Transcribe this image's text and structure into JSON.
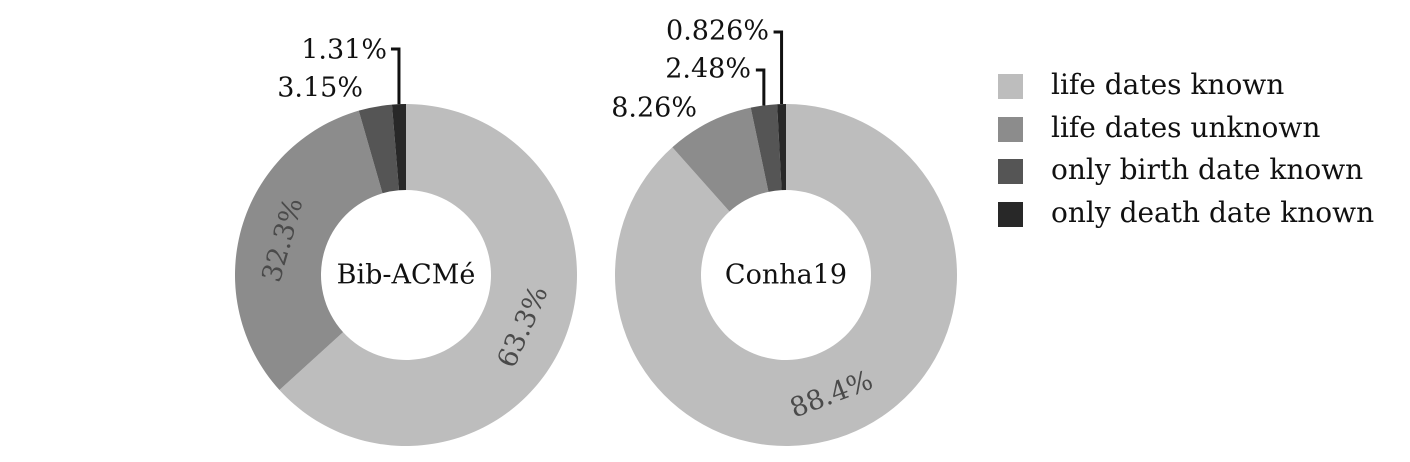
{
  "chart_data": [
    {
      "type": "pie",
      "variant": "donut",
      "center_label": "Bib-ACMé",
      "categories": [
        "life dates known",
        "life dates unknown",
        "only birth date known",
        "only death date known"
      ],
      "values": [
        63.3,
        32.3,
        3.15,
        1.31
      ],
      "value_labels": [
        "63.3%",
        "32.3%",
        "3.15%",
        "1.31%"
      ]
    },
    {
      "type": "pie",
      "variant": "donut",
      "center_label": "Conha19",
      "categories": [
        "life dates known",
        "life dates unknown",
        "only birth date known",
        "only death date known"
      ],
      "values": [
        88.4,
        8.26,
        2.48,
        0.826
      ],
      "value_labels": [
        "88.4%",
        "8.26%",
        "2.48%",
        "0.826%"
      ]
    }
  ],
  "legend": {
    "placement": "right",
    "items": [
      {
        "label": "life dates known",
        "color": "#bdbdbd"
      },
      {
        "label": "life dates unknown",
        "color": "#8c8c8c"
      },
      {
        "label": "only birth date known",
        "color": "#555555"
      },
      {
        "label": "only death date known",
        "color": "#282828"
      }
    ]
  },
  "colors": {
    "slices": [
      "#bdbdbd",
      "#8c8c8c",
      "#555555",
      "#282828"
    ],
    "inner_label": "#4a4a4a",
    "outer_label": "#111111"
  }
}
